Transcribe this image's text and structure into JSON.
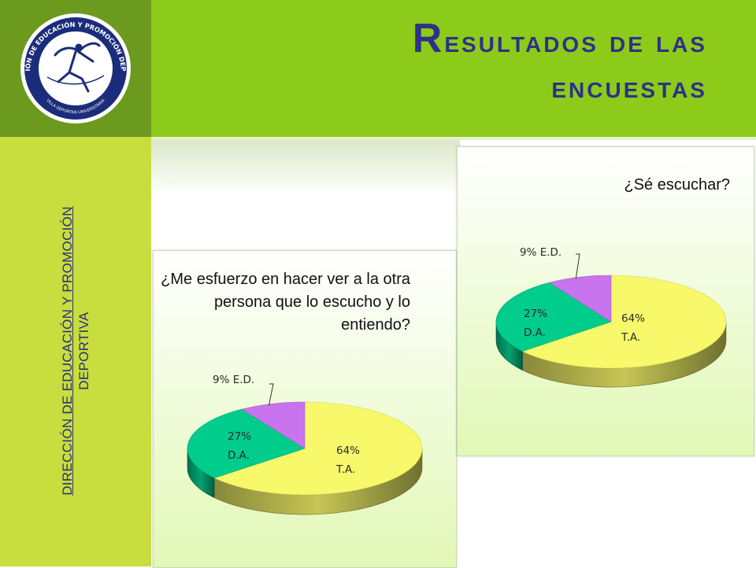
{
  "header": {
    "title_line1": "Resultados de las",
    "title_line2": "encuestas"
  },
  "sidebar": {
    "line1": "DIRECCIÓN DE EDUCACIÓN Y PROMOCIÓN",
    "line2": "DEPORTIVA"
  },
  "logo": {
    "ring_text": "DIRECCIÓN DE EDUCACIÓN Y PROMOCIÓN DEPORTIVA",
    "bottom_text": "VILLA DEPORTIVA UNIVERSITARIA"
  },
  "colors": {
    "ta": "#f7f86a",
    "da": "#00cc8c",
    "ed": "#c874ee",
    "header": "#8ccb1a",
    "sidebar": "#c8dd3e",
    "title": "#2d3188"
  },
  "chart_data": [
    {
      "type": "pie",
      "title": "¿Me esfuerzo en hacer ver a la otra persona que lo escucho y lo entiendo?",
      "slices": [
        {
          "name": "T.A.",
          "value": 64,
          "label_pct": "64%"
        },
        {
          "name": "D.A.",
          "value": 27,
          "label_pct": "27%"
        },
        {
          "name": "E.D.",
          "value": 9,
          "label_pct": "9%"
        }
      ]
    },
    {
      "type": "pie",
      "title": "¿Sé escuchar?",
      "slices": [
        {
          "name": "T.A.",
          "value": 64,
          "label_pct": "64%"
        },
        {
          "name": "D.A.",
          "value": 27,
          "label_pct": "27%"
        },
        {
          "name": "E.D.",
          "value": 9,
          "label_pct": "9%"
        }
      ]
    }
  ]
}
